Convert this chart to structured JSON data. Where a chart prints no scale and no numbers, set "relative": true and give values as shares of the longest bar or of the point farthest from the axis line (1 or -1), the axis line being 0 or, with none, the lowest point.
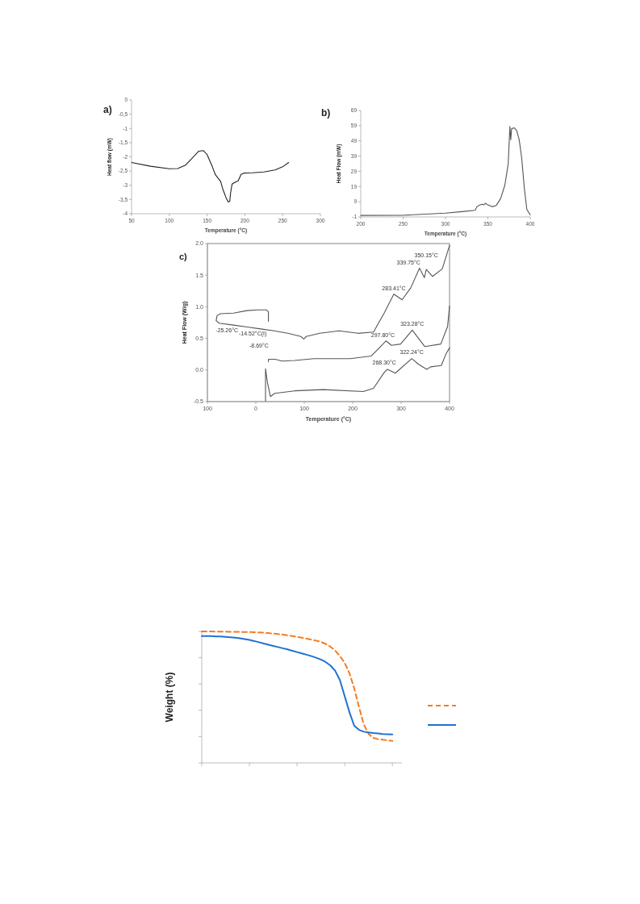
{
  "chart_data": [
    {
      "type": "line",
      "title": "a)",
      "xlabel": "Temperature (°C)",
      "ylabel": "Heat flow (mW)",
      "xlim": [
        50,
        300
      ],
      "xticks": [
        50,
        100,
        150,
        200,
        250,
        300
      ],
      "ylim": [
        -4,
        0
      ],
      "yticks": [
        -4,
        {
          "value": -3.5,
          "label": "-3,5"
        },
        -3,
        {
          "value": -2.5,
          "label": "-2,5"
        },
        -2,
        {
          "value": -1.5,
          "label": "-1,5"
        },
        -1,
        {
          "value": -0.5,
          "label": "-0,5"
        },
        0
      ],
      "series": [
        {
          "color": "#222222",
          "x": [
            50,
            75,
            100,
            111,
            121,
            129,
            139,
            145,
            150,
            157,
            161,
            168,
            171,
            175,
            178,
            180,
            181,
            183,
            188,
            191,
            195,
            199,
            210,
            225,
            240,
            250,
            258
          ],
          "values": [
            -2.2,
            -2.33,
            -2.42,
            -2.41,
            -2.3,
            -2.08,
            -1.8,
            -1.78,
            -1.92,
            -2.35,
            -2.63,
            -2.87,
            -3.15,
            -3.43,
            -3.59,
            -3.57,
            -3.29,
            -2.96,
            -2.88,
            -2.85,
            -2.62,
            -2.57,
            -2.56,
            -2.53,
            -2.46,
            -2.35,
            -2.2
          ]
        }
      ]
    },
    {
      "type": "line",
      "title": "b)",
      "xlabel": "Temperature (°C)",
      "ylabel": "Heat Flow (mW)",
      "xlim": [
        200,
        400
      ],
      "xticks": [
        200,
        250,
        300,
        350,
        400
      ],
      "ylim": [
        -1,
        69
      ],
      "yticks": [
        -1,
        9,
        19,
        29,
        39,
        49,
        59,
        69
      ],
      "series": [
        {
          "color": "#555555",
          "x": [
            200,
            250,
            300,
            320,
            335,
            337,
            340,
            343,
            345,
            347,
            350,
            355,
            360,
            365,
            370,
            374,
            376,
            377,
            378,
            381,
            384,
            387,
            390,
            393,
            396,
            400
          ],
          "values": [
            0,
            0.1,
            1.5,
            2.5,
            3.4,
            5.7,
            6.7,
            7.4,
            6.9,
            8,
            6.9,
            5.7,
            6.6,
            11,
            19.8,
            33.8,
            58.5,
            49.7,
            57,
            57.6,
            55.8,
            49.7,
            37.3,
            18,
            3.9,
            0.4
          ]
        }
      ]
    },
    {
      "type": "line",
      "title": "c)",
      "xlabel": "Temperature (°C)",
      "ylabel": "Heat Flow (W/g)",
      "xlim": [
        -100,
        400
      ],
      "xticks": [
        {
          "value": -100,
          "label": "100"
        },
        0,
        100,
        200,
        300,
        400
      ],
      "ylim": [
        -0.5,
        2
      ],
      "yticks": [
        {
          "value": -0.5,
          "label": "-0.5"
        },
        {
          "value": 0,
          "label": "0.0"
        },
        {
          "value": 0.5,
          "label": "0.5"
        },
        {
          "value": 1,
          "label": "1.0"
        },
        {
          "value": 1.5,
          "label": "1.5"
        },
        {
          "value": 2,
          "label": "2.0"
        }
      ],
      "series": [
        {
          "color": "#555555",
          "x": [
            26,
            26,
            22,
            5,
            -18,
            -46,
            -73,
            -80,
            -82,
            -76,
            -46,
            -18,
            10,
            38,
            66,
            93,
            99,
            104,
            132,
            172,
            211,
            243,
            265,
            285,
            302,
            320,
            338,
            348,
            352,
            365,
            385,
            400
          ],
          "values": [
            0.77,
            0.92,
            0.95,
            0.95,
            0.94,
            0.9,
            0.89,
            0.86,
            0.78,
            0.74,
            0.71,
            0.68,
            0.65,
            0.62,
            0.58,
            0.53,
            0.49,
            0.53,
            0.58,
            0.62,
            0.58,
            0.6,
            0.9,
            1.2,
            1.11,
            1.3,
            1.61,
            1.46,
            1.59,
            1.48,
            1.6,
            1.97
          ]
        },
        {
          "color": "#555555",
          "x": [
            26,
            26,
            40,
            54,
            80,
            120,
            150,
            195,
            238,
            255,
            269,
            280,
            299,
            323,
            349,
            382,
            396,
            400
          ],
          "values": [
            0.13,
            0.17,
            0.17,
            0.14,
            0.15,
            0.18,
            0.18,
            0.18,
            0.22,
            0.35,
            0.46,
            0.39,
            0.41,
            0.63,
            0.37,
            0.41,
            0.69,
            1.01
          ]
        },
        {
          "color": "#555555",
          "x": [
            20,
            20,
            24,
            30,
            39,
            80,
            139,
            222,
            243,
            266,
            272,
            288,
            322,
            336,
            353,
            361,
            383,
            393,
            400
          ],
          "values": [
            -0.49,
            0.02,
            -0.2,
            -0.42,
            -0.37,
            -0.33,
            -0.31,
            -0.34,
            -0.29,
            -0.03,
            0.01,
            -0.05,
            0.18,
            0.09,
            0.01,
            0.05,
            0.07,
            0.26,
            0.35
          ]
        }
      ],
      "annotations": [
        {
          "text": "-25.26°C",
          "x": -40,
          "y": 0.71
        },
        {
          "text": "-14.52°C(I)",
          "x": -25,
          "y": 0.69
        },
        {
          "text": "-8.69°C",
          "x": -10,
          "y": 0.66
        },
        {
          "text": "283.41°C",
          "x": 285,
          "y": 1.2
        },
        {
          "text": "339.75°C",
          "x": 338,
          "y": 1.61
        },
        {
          "text": "350.15°C",
          "x": 352,
          "y": 1.59
        },
        {
          "text": "297.80°C",
          "x": 269,
          "y": 0.46
        },
        {
          "text": "323.28°C",
          "x": 323,
          "y": 0.63
        },
        {
          "text": "268.30°C",
          "x": 272,
          "y": 0.01
        },
        {
          "text": "322.24°C",
          "x": 322,
          "y": 0.18
        }
      ]
    },
    {
      "type": "line",
      "ylabel": "Weight (%)",
      "relative": true,
      "categories": [
        null,
        null,
        null,
        null,
        null,
        null,
        null,
        null,
        null,
        null,
        null,
        null,
        null,
        null,
        null,
        null,
        null,
        null,
        null,
        null,
        null,
        null,
        null,
        null,
        null,
        null,
        null,
        null,
        null,
        null,
        null,
        null,
        null,
        null,
        null,
        null,
        null,
        null,
        null,
        null,
        null,
        null,
        null
      ],
      "series": [
        {
          "color": "#f47c20",
          "line_style": "dashed",
          "values": [
            1.0,
            1.0,
            1.0,
            0.998,
            0.998,
            0.998,
            0.997,
            0.997,
            0.996,
            0.996,
            0.996,
            0.994,
            0.992,
            0.99,
            0.987,
            0.984,
            0.98,
            0.976,
            0.97,
            0.965,
            0.959,
            0.952,
            0.945,
            0.938,
            0.93,
            0.92,
            0.905,
            0.884,
            0.855,
            0.812,
            0.761,
            0.68,
            0.567,
            0.424,
            0.292,
            0.22,
            0.19,
            0.18,
            0.176,
            0.171,
            0.167,
            null,
            null
          ]
        },
        {
          "color": "#1f72d0",
          "line_style": "solid",
          "values": [
            0.965,
            0.965,
            0.964,
            0.962,
            0.961,
            0.959,
            0.956,
            0.952,
            0.948,
            0.942,
            0.935,
            0.927,
            0.918,
            0.908,
            0.899,
            0.89,
            0.881,
            0.872,
            0.863,
            0.853,
            0.843,
            0.833,
            0.823,
            0.812,
            0.8,
            0.786,
            0.767,
            0.741,
            0.7,
            0.629,
            0.506,
            0.384,
            0.282,
            0.251,
            0.237,
            0.232,
            0.227,
            0.224,
            0.22,
            0.218,
            0.216,
            null,
            null
          ]
        }
      ]
    }
  ]
}
